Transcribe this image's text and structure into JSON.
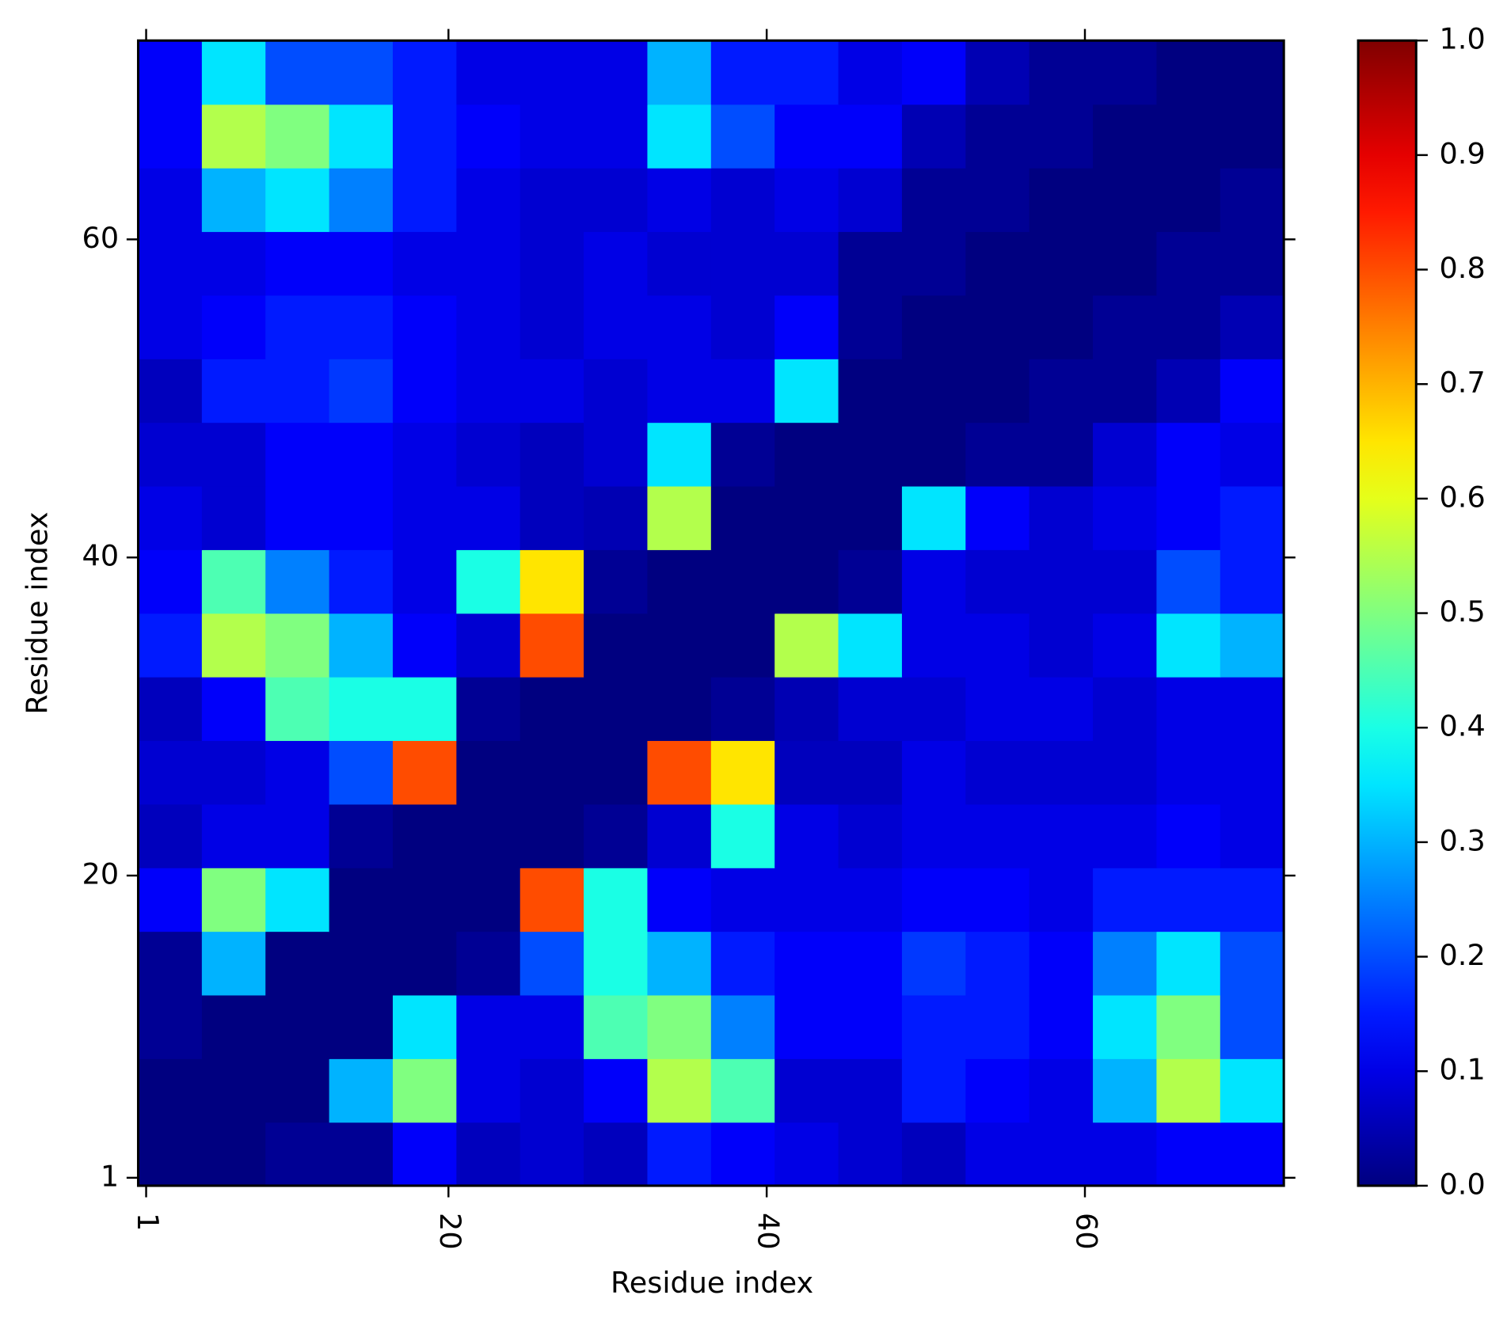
{
  "chart_data": {
    "type": "heatmap",
    "x_label": "Residue index",
    "y_label": "Residue index",
    "colormap": "jet",
    "x": [
      2.5,
      6.5,
      10.5,
      14.5,
      18.5,
      22.5,
      26.5,
      30.5,
      34.5,
      38.5,
      42.5,
      46.5,
      50.5,
      54.5,
      58.5,
      62.5,
      66.5,
      70.5
    ],
    "y": [
      2.5,
      6.5,
      10.5,
      14.5,
      18.5,
      22.5,
      26.5,
      30.5,
      34.5,
      38.5,
      42.5,
      46.5,
      50.5,
      54.5,
      58.5,
      62.5,
      66.5,
      70.5
    ],
    "z": [
      [
        0,
        0,
        0.02,
        0.02,
        0.12,
        0.06,
        0.08,
        0.06,
        0.15,
        0.12,
        0.1,
        0.08,
        0.06,
        0.1,
        0.1,
        0.1,
        0.12,
        0.12
      ],
      [
        0,
        0,
        0,
        0.3,
        0.5,
        0.1,
        0.08,
        0.12,
        0.55,
        0.45,
        0.08,
        0.08,
        0.15,
        0.12,
        0.1,
        0.3,
        0.55,
        0.35
      ],
      [
        0.02,
        0,
        0,
        0,
        0.35,
        0.1,
        0.1,
        0.45,
        0.5,
        0.25,
        0.12,
        0.12,
        0.15,
        0.15,
        0.12,
        0.35,
        0.5,
        0.2
      ],
      [
        0.02,
        0.3,
        0,
        0,
        0,
        0.02,
        0.2,
        0.4,
        0.3,
        0.15,
        0.12,
        0.12,
        0.18,
        0.15,
        0.12,
        0.25,
        0.35,
        0.2
      ],
      [
        0.12,
        0.5,
        0.35,
        0,
        0,
        0,
        0.8,
        0.4,
        0.12,
        0.1,
        0.1,
        0.1,
        0.12,
        0.12,
        0.1,
        0.15,
        0.15,
        0.15
      ],
      [
        0.06,
        0.1,
        0.1,
        0.02,
        0,
        0,
        0,
        0.02,
        0.08,
        0.4,
        0.1,
        0.08,
        0.1,
        0.1,
        0.1,
        0.1,
        0.12,
        0.1
      ],
      [
        0.08,
        0.08,
        0.1,
        0.2,
        0.8,
        0,
        0,
        0,
        0.8,
        0.65,
        0.06,
        0.06,
        0.1,
        0.08,
        0.08,
        0.08,
        0.1,
        0.1
      ],
      [
        0.06,
        0.12,
        0.45,
        0.4,
        0.4,
        0.02,
        0,
        0,
        0,
        0.02,
        0.05,
        0.08,
        0.08,
        0.1,
        0.1,
        0.08,
        0.1,
        0.1
      ],
      [
        0.15,
        0.55,
        0.5,
        0.3,
        0.12,
        0.08,
        0.8,
        0,
        0,
        0,
        0.55,
        0.35,
        0.1,
        0.1,
        0.08,
        0.1,
        0.35,
        0.3
      ],
      [
        0.12,
        0.45,
        0.25,
        0.15,
        0.1,
        0.4,
        0.65,
        0.02,
        0,
        0,
        0,
        0.02,
        0.1,
        0.08,
        0.08,
        0.08,
        0.2,
        0.15
      ],
      [
        0.1,
        0.08,
        0.12,
        0.12,
        0.1,
        0.1,
        0.06,
        0.05,
        0.55,
        0,
        0,
        0,
        0.35,
        0.12,
        0.08,
        0.1,
        0.12,
        0.15
      ],
      [
        0.08,
        0.08,
        0.12,
        0.12,
        0.1,
        0.08,
        0.06,
        0.08,
        0.35,
        0.02,
        0,
        0,
        0,
        0.02,
        0.02,
        0.08,
        0.12,
        0.1
      ],
      [
        0.06,
        0.15,
        0.15,
        0.18,
        0.12,
        0.1,
        0.1,
        0.08,
        0.1,
        0.1,
        0.35,
        0,
        0,
        0,
        0.02,
        0.02,
        0.05,
        0.12
      ],
      [
        0.1,
        0.12,
        0.15,
        0.15,
        0.12,
        0.1,
        0.08,
        0.1,
        0.1,
        0.08,
        0.12,
        0.02,
        0,
        0,
        0,
        0.02,
        0.02,
        0.05
      ],
      [
        0.1,
        0.1,
        0.12,
        0.12,
        0.1,
        0.1,
        0.08,
        0.1,
        0.08,
        0.08,
        0.08,
        0.02,
        0.02,
        0,
        0,
        0,
        0.02,
        0.02
      ],
      [
        0.1,
        0.3,
        0.35,
        0.25,
        0.15,
        0.1,
        0.08,
        0.08,
        0.1,
        0.08,
        0.1,
        0.08,
        0.02,
        0.02,
        0,
        0,
        0,
        0.02
      ],
      [
        0.12,
        0.55,
        0.5,
        0.35,
        0.15,
        0.12,
        0.1,
        0.1,
        0.35,
        0.2,
        0.12,
        0.12,
        0.05,
        0.02,
        0.02,
        0,
        0,
        0
      ],
      [
        0.12,
        0.35,
        0.2,
        0.2,
        0.15,
        0.1,
        0.1,
        0.1,
        0.3,
        0.15,
        0.15,
        0.1,
        0.12,
        0.05,
        0.02,
        0.02,
        0,
        0
      ]
    ],
    "xlim": [
      0.5,
      72.5
    ],
    "ylim": [
      0.5,
      72.5
    ],
    "xticks": [
      1,
      20,
      40,
      60
    ],
    "yticks": [
      1,
      20,
      40,
      60
    ],
    "colorbar_lim": [
      0,
      1
    ],
    "colorbar_ticks": [
      {
        "value": 0,
        "label": "0.0"
      },
      {
        "value": 0.1,
        "label": "0.1"
      },
      {
        "value": 0.2,
        "label": "0.2"
      },
      {
        "value": 0.3,
        "label": "0.3"
      },
      {
        "value": 0.4,
        "label": "0.4"
      },
      {
        "value": 0.5,
        "label": "0.5"
      },
      {
        "value": 0.6,
        "label": "0.6"
      },
      {
        "value": 0.7,
        "label": "0.7"
      },
      {
        "value": 0.8,
        "label": "0.8"
      },
      {
        "value": 0.9,
        "label": "0.9"
      },
      {
        "value": 1,
        "label": "1.0"
      }
    ]
  }
}
